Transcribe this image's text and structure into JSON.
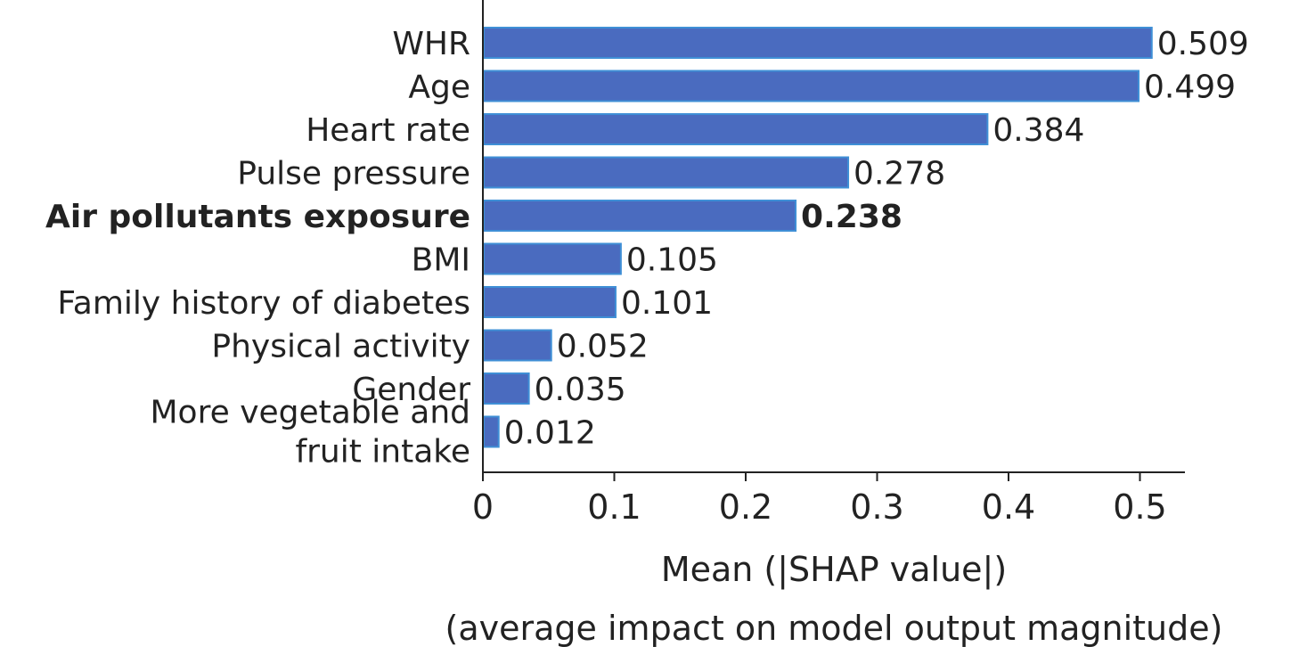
{
  "chart_data": {
    "type": "bar",
    "orientation": "horizontal",
    "categories": [
      "WHR",
      "Age",
      "Heart rate",
      "Pulse pressure",
      "Air pollutants exposure",
      "BMI",
      "Family history of diabetes",
      "Physical activity",
      "Gender",
      "More vegetable and fruit intake"
    ],
    "values": [
      0.509,
      0.499,
      0.384,
      0.278,
      0.238,
      0.105,
      0.101,
      0.052,
      0.035,
      0.012
    ],
    "value_labels": [
      "0.509",
      "0.499",
      "0.384",
      "0.278",
      "0.238",
      "0.105",
      "0.101",
      "0.052",
      "0.035",
      "0.012"
    ],
    "highlighted_category": "Air pollutants exposure",
    "xlabel": "Mean (|SHAP value|)",
    "xlabel_sub": "(average impact on model output magnitude)",
    "ylabel": "",
    "xlim": [
      0,
      0.535
    ],
    "xticks": [
      0,
      0.1,
      0.2,
      0.3,
      0.4,
      0.5
    ],
    "xtick_labels": [
      "0",
      "0.1",
      "0.2",
      "0.3",
      "0.4",
      "0.5"
    ],
    "grid": false,
    "legend": "none",
    "colors": {
      "bar": "#4a6bbf",
      "bar_edge": "#3f8fd6",
      "axis": "#222222",
      "text": "#222222"
    }
  }
}
